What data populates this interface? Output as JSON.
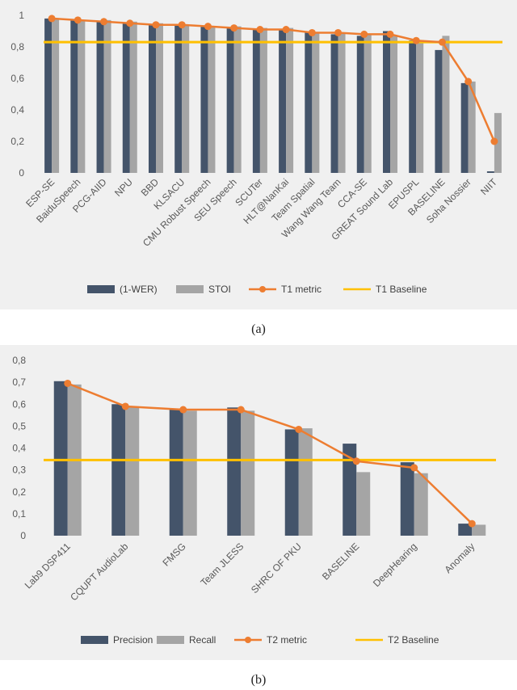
{
  "colors": {
    "dark_bar": "#44546a",
    "light_bar": "#a5a5a5",
    "metric_line": "#ed7d31",
    "baseline_line": "#ffc000"
  },
  "captions": {
    "a": "(a)",
    "b": "(b)"
  },
  "chart_data": [
    {
      "type": "bar",
      "title": "",
      "xlabel": "",
      "ylabel": "",
      "ylim": [
        0,
        1
      ],
      "yticks": [
        "0",
        "0,2",
        "0,4",
        "0,6",
        "0,8",
        "1"
      ],
      "categories": [
        "ESP-SE",
        "BaiduSpeech",
        "PCG-AIID",
        "NPU",
        "BBD",
        "KLSACU",
        "CMU Robust Speech",
        "SEU Speech",
        "SCUTer",
        "HLT@NanKai",
        "Team Spatial",
        "Wang Wang Team",
        "CCA-SE",
        "GREAT Sound Lab",
        "EPUSPL",
        "BASELINE",
        "Soha Nossier",
        "NIIT"
      ],
      "series": [
        {
          "name": "(1-WER)",
          "kind": "bar",
          "values": [
            0.98,
            0.97,
            0.96,
            0.95,
            0.94,
            0.94,
            0.93,
            0.92,
            0.91,
            0.91,
            0.89,
            0.88,
            0.87,
            0.9,
            0.84,
            0.78,
            0.57,
            0.01
          ]
        },
        {
          "name": "STOI",
          "kind": "bar",
          "values": [
            0.98,
            0.97,
            0.97,
            0.96,
            0.95,
            0.94,
            0.93,
            0.93,
            0.92,
            0.92,
            0.89,
            0.89,
            0.88,
            0.87,
            0.84,
            0.87,
            0.58,
            0.38
          ]
        },
        {
          "name": "T1 metric",
          "kind": "line",
          "values": [
            0.98,
            0.97,
            0.96,
            0.95,
            0.94,
            0.94,
            0.93,
            0.92,
            0.91,
            0.91,
            0.89,
            0.89,
            0.88,
            0.88,
            0.84,
            0.83,
            0.58,
            0.2
          ]
        },
        {
          "name": "T1 Baseline",
          "kind": "line",
          "values": [
            0.83,
            0.83,
            0.83,
            0.83,
            0.83,
            0.83,
            0.83,
            0.83,
            0.83,
            0.83,
            0.83,
            0.83,
            0.83,
            0.83,
            0.83,
            0.83,
            0.83,
            0.83
          ]
        }
      ],
      "legend": "bottom"
    },
    {
      "type": "bar",
      "title": "",
      "xlabel": "",
      "ylabel": "",
      "ylim": [
        0,
        0.8
      ],
      "yticks": [
        "0",
        "0,1",
        "0,2",
        "0,3",
        "0,4",
        "0,5",
        "0,6",
        "0,7",
        "0,8"
      ],
      "categories": [
        "Lab9 DSP411",
        "CQUPT AudioLab",
        "FMSG",
        "Team JLESS",
        "SHRC OF PKU",
        "BASELINE",
        "DeepHearing",
        "Anomaly"
      ],
      "series": [
        {
          "name": "Precision",
          "kind": "bar",
          "values": [
            0.705,
            0.6,
            0.58,
            0.585,
            0.485,
            0.42,
            0.335,
            0.055
          ]
        },
        {
          "name": "Recall",
          "kind": "bar",
          "values": [
            0.69,
            0.59,
            0.57,
            0.57,
            0.49,
            0.29,
            0.285,
            0.05
          ]
        },
        {
          "name": "T2 metric",
          "kind": "line",
          "values": [
            0.695,
            0.59,
            0.575,
            0.575,
            0.485,
            0.34,
            0.31,
            0.055
          ]
        },
        {
          "name": "T2 Baseline",
          "kind": "line",
          "values": [
            0.345,
            0.345,
            0.345,
            0.345,
            0.345,
            0.345,
            0.345,
            0.345
          ]
        }
      ],
      "legend": "bottom"
    }
  ]
}
